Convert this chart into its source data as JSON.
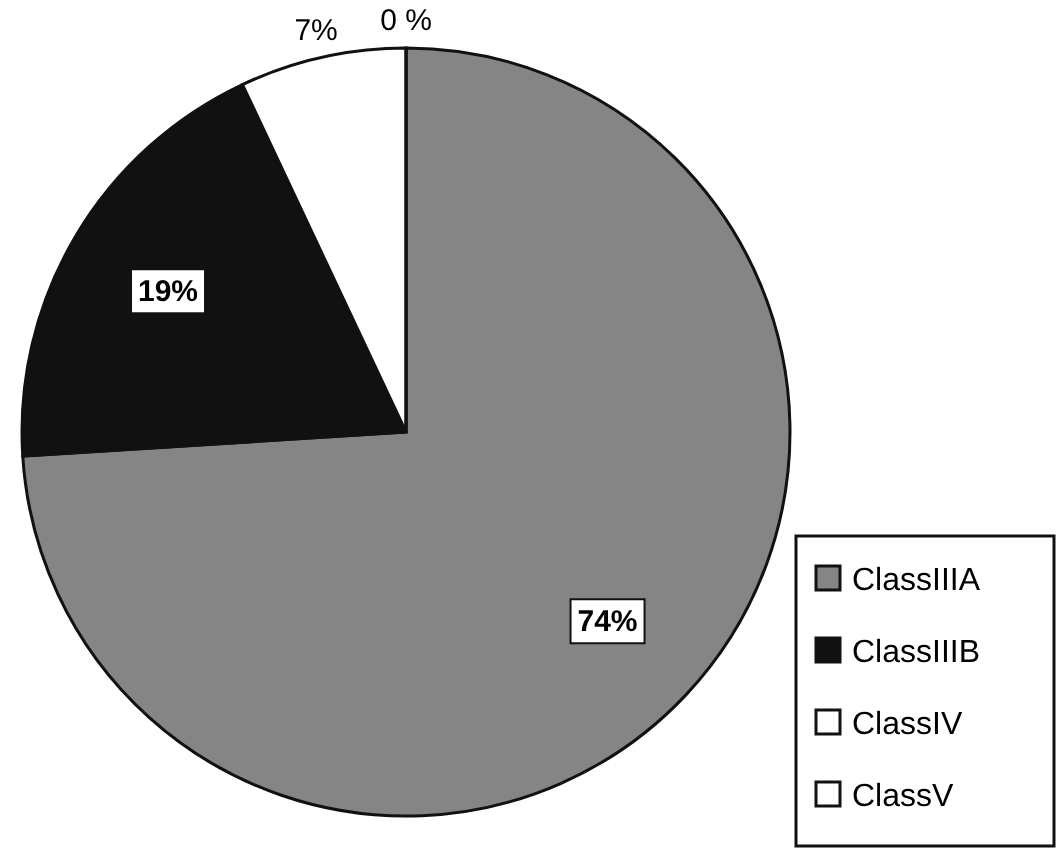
{
  "chart_data": {
    "type": "pie",
    "categories": [
      "ClassIIIA",
      "ClassIIIB",
      "ClassIV",
      "ClassV"
    ],
    "values": [
      74,
      19,
      7,
      0
    ],
    "colors": [
      "#858585",
      "#111111",
      "#ffffff",
      "#ffffff"
    ],
    "value_labels": [
      "74%",
      "19%",
      "7%",
      "0 %"
    ],
    "legend": "bottom right"
  }
}
